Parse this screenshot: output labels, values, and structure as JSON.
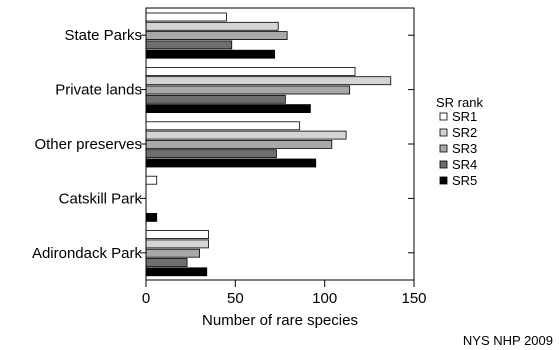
{
  "chart_data": {
    "type": "bar",
    "orientation": "horizontal",
    "categories": [
      "State Parks",
      "Private lands",
      "Other preserves",
      "Catskill Park",
      "Adirondack Park"
    ],
    "series": [
      {
        "name": "SR1",
        "color": "#ffffff",
        "values": [
          45,
          117,
          86,
          6,
          35
        ]
      },
      {
        "name": "SR2",
        "color": "#d4d4d4",
        "values": [
          74,
          137,
          112,
          0,
          35
        ]
      },
      {
        "name": "SR3",
        "color": "#a8a8a8",
        "values": [
          79,
          114,
          104,
          0,
          30
        ]
      },
      {
        "name": "SR4",
        "color": "#6e6e6e",
        "values": [
          48,
          78,
          73,
          0,
          23
        ]
      },
      {
        "name": "SR5",
        "color": "#000000",
        "values": [
          72,
          92,
          95,
          6,
          34
        ]
      }
    ],
    "xlabel": "Number of rare species",
    "xlim": [
      0,
      150
    ],
    "xticks": [
      0,
      50,
      100,
      150
    ],
    "legend_title": "SR rank",
    "legend_position": "right",
    "grid": false
  },
  "credit": "NYS NHP 2009"
}
